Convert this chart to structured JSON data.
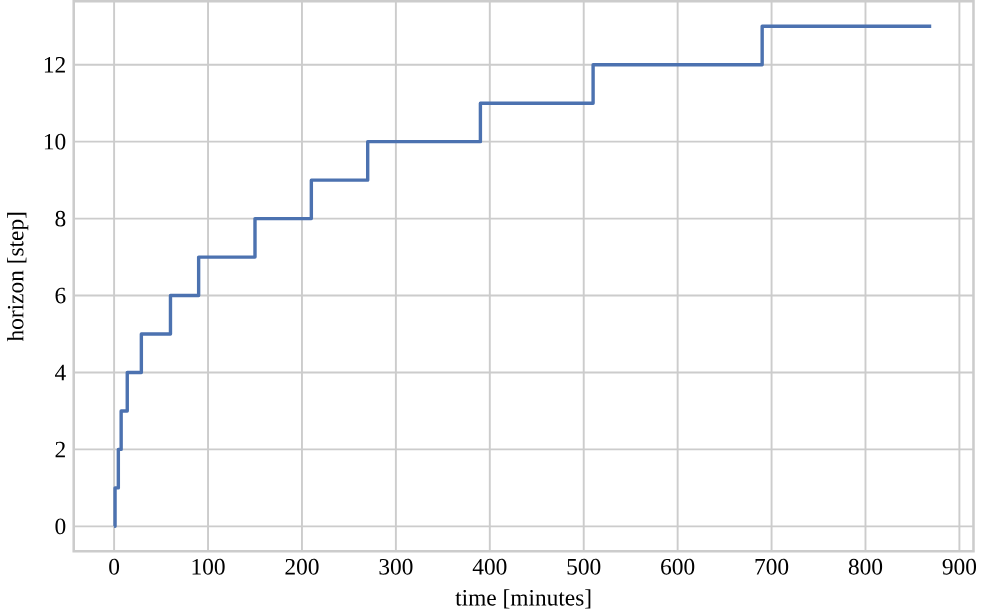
{
  "chart_data": {
    "type": "step",
    "xlabel": "time [minutes]",
    "ylabel": "horizon [step]",
    "x": [
      0,
      1,
      4.5,
      7.5,
      14,
      29,
      60,
      90,
      150,
      210,
      270,
      390,
      510,
      690,
      870
    ],
    "series": [
      {
        "color": "#4c72b0",
        "values": [
          0,
          1,
          2,
          3,
          4,
          5,
          6,
          7,
          8,
          9,
          10,
          11,
          12,
          13,
          13
        ]
      }
    ],
    "xlim": [
      -43,
      915
    ],
    "ylim": [
      -0.65,
      13.65
    ],
    "xticks": [
      0,
      100,
      200,
      300,
      400,
      500,
      600,
      700,
      800,
      900
    ],
    "yticks": [
      0,
      2,
      4,
      6,
      8,
      10,
      12
    ],
    "grid": true,
    "marker": "none",
    "line_style": "solid"
  }
}
